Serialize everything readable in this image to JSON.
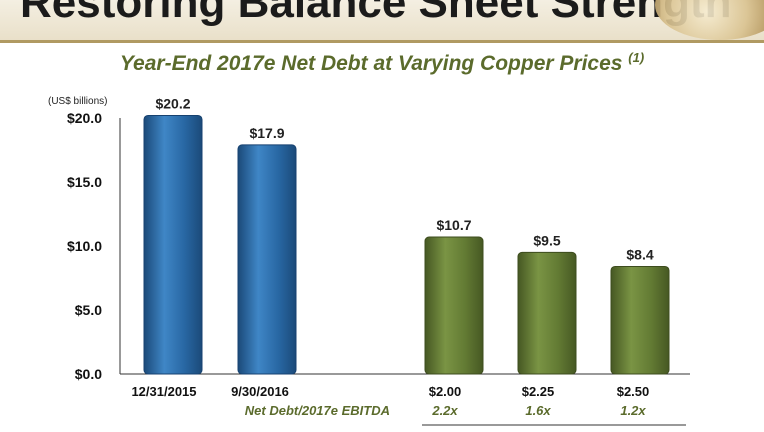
{
  "header": {
    "title": "Restoring Balance Sheet Strength"
  },
  "chart_data": {
    "type": "bar",
    "title": "Year-End 2017e Net Debt at Varying Copper Prices",
    "title_footnote": "(1)",
    "unit_label": "(US$ billions)",
    "ylim": [
      0,
      20
    ],
    "ytick_labels": [
      "$0.0",
      "$5.0",
      "$10.0",
      "$15.0",
      "$20.0"
    ],
    "categories": [
      "12/31/2015",
      "9/30/2016",
      "$2.00",
      "$2.25",
      "$2.50"
    ],
    "values": [
      20.2,
      17.9,
      10.7,
      9.5,
      8.4
    ],
    "value_labels": [
      "$20.2",
      "$17.9",
      "$10.7",
      "$9.5",
      "$8.4"
    ],
    "bar_colors": [
      "#2867a3",
      "#2867a3",
      "#627a33",
      "#627a33",
      "#627a33"
    ],
    "ratio_caption": "Net Debt/2017e EBITDA",
    "ratios": [
      "2.2x",
      "1.6x",
      "1.2x"
    ],
    "grid": false,
    "legend": "none"
  }
}
